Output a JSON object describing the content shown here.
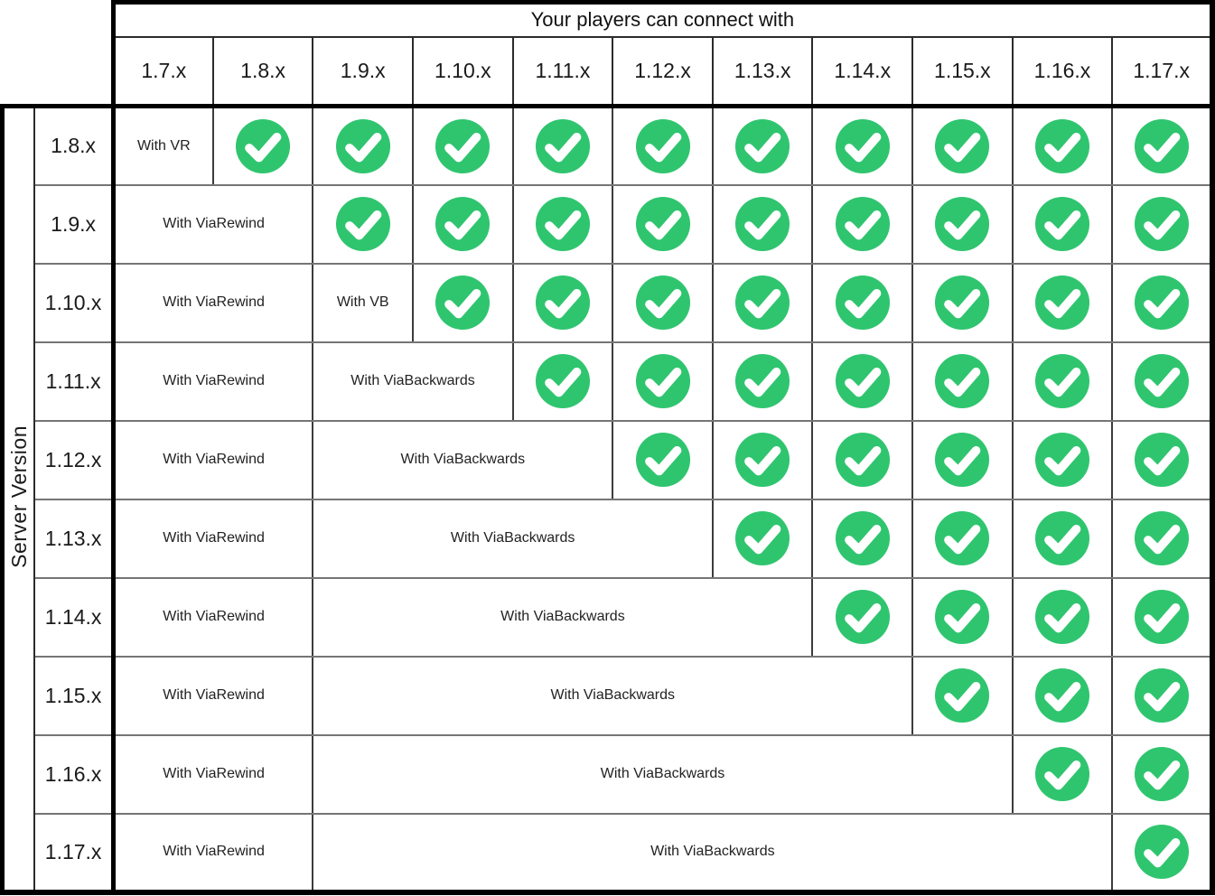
{
  "colors": {
    "check_circle": "#2fc56f",
    "check_mark": "#ffffff",
    "thick_border": "#000000",
    "thin_vertical_line": "#3c3c3c",
    "thin_horizontal_line": "#757575",
    "background": "#ffffff",
    "text": "#1a1a1a"
  },
  "icons": {
    "check": "check-circle-icon"
  },
  "layout": {
    "axis_col_width": 36,
    "server_col_width": 87,
    "client_col_width": 111
  },
  "chart_data": {
    "type": "table",
    "title": "Your players can connect with",
    "row_axis_label": "Server Version",
    "columns": [
      "1.7.x",
      "1.8.x",
      "1.9.x",
      "1.10.x",
      "1.11.x",
      "1.12.x",
      "1.13.x",
      "1.14.x",
      "1.15.x",
      "1.16.x",
      "1.17.x"
    ],
    "rows": [
      {
        "server_version": "1.8.x",
        "cells": [
          {
            "kind": "note",
            "text": "With VR",
            "colspan": 1
          },
          {
            "kind": "checks",
            "count": 10
          }
        ]
      },
      {
        "server_version": "1.9.x",
        "cells": [
          {
            "kind": "note",
            "text": "With ViaRewind",
            "colspan": 2
          },
          {
            "kind": "checks",
            "count": 9
          }
        ]
      },
      {
        "server_version": "1.10.x",
        "cells": [
          {
            "kind": "note",
            "text": "With ViaRewind",
            "colspan": 2
          },
          {
            "kind": "note",
            "text": "With VB",
            "colspan": 1
          },
          {
            "kind": "checks",
            "count": 8
          }
        ]
      },
      {
        "server_version": "1.11.x",
        "cells": [
          {
            "kind": "note",
            "text": "With ViaRewind",
            "colspan": 2
          },
          {
            "kind": "note",
            "text": "With ViaBackwards",
            "colspan": 2
          },
          {
            "kind": "checks",
            "count": 7
          }
        ]
      },
      {
        "server_version": "1.12.x",
        "cells": [
          {
            "kind": "note",
            "text": "With ViaRewind",
            "colspan": 2
          },
          {
            "kind": "note",
            "text": "With ViaBackwards",
            "colspan": 3
          },
          {
            "kind": "checks",
            "count": 6
          }
        ]
      },
      {
        "server_version": "1.13.x",
        "cells": [
          {
            "kind": "note",
            "text": "With ViaRewind",
            "colspan": 2
          },
          {
            "kind": "note",
            "text": "With ViaBackwards",
            "colspan": 4
          },
          {
            "kind": "checks",
            "count": 5
          }
        ]
      },
      {
        "server_version": "1.14.x",
        "cells": [
          {
            "kind": "note",
            "text": "With ViaRewind",
            "colspan": 2
          },
          {
            "kind": "note",
            "text": "With ViaBackwards",
            "colspan": 5
          },
          {
            "kind": "checks",
            "count": 4
          }
        ]
      },
      {
        "server_version": "1.15.x",
        "cells": [
          {
            "kind": "note",
            "text": "With ViaRewind",
            "colspan": 2
          },
          {
            "kind": "note",
            "text": "With ViaBackwards",
            "colspan": 6
          },
          {
            "kind": "checks",
            "count": 3
          }
        ]
      },
      {
        "server_version": "1.16.x",
        "cells": [
          {
            "kind": "note",
            "text": "With ViaRewind",
            "colspan": 2
          },
          {
            "kind": "note",
            "text": "With ViaBackwards",
            "colspan": 7
          },
          {
            "kind": "checks",
            "count": 2
          }
        ]
      },
      {
        "server_version": "1.17.x",
        "cells": [
          {
            "kind": "note",
            "text": "With ViaRewind",
            "colspan": 2
          },
          {
            "kind": "note",
            "text": "With ViaBackwards",
            "colspan": 8
          },
          {
            "kind": "checks",
            "count": 1
          }
        ]
      }
    ]
  }
}
